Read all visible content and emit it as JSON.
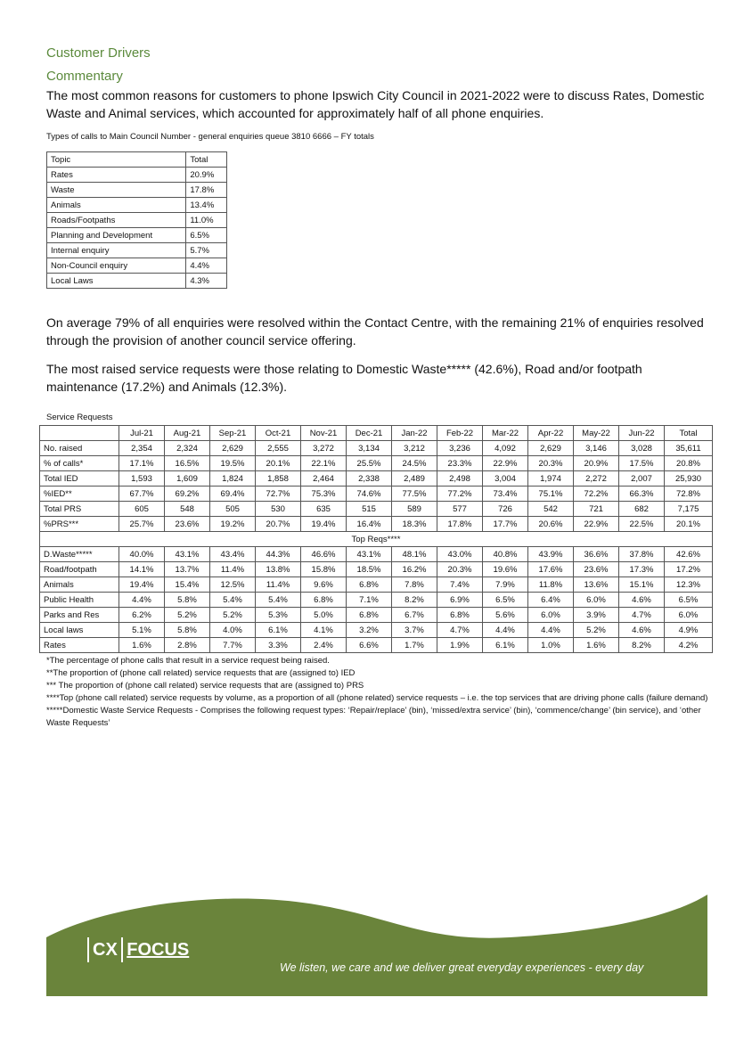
{
  "heading1": "Customer Drivers",
  "heading2": "Commentary",
  "intro": "The most common reasons for customers to phone Ipswich City Council in 2021-2022 were to discuss Rates, Domestic Waste and Animal services, which accounted for approximately half of all phone enquiries.",
  "topics_caption": "Types of calls to Main Council Number - general enquiries queue 3810 6666 – FY totals",
  "topics": {
    "headers": [
      "Topic",
      "Total"
    ],
    "rows": [
      [
        "Rates",
        "20.9%"
      ],
      [
        "Waste",
        "17.8%"
      ],
      [
        "Animals",
        "13.4%"
      ],
      [
        "Roads/Footpaths",
        "11.0%"
      ],
      [
        "Planning and Development",
        "6.5%"
      ],
      [
        "Internal enquiry",
        "5.7%"
      ],
      [
        "Non-Council enquiry",
        "4.4%"
      ],
      [
        "Local Laws",
        "4.3%"
      ]
    ]
  },
  "para2": "On average 79% of all enquiries were resolved within the Contact Centre, with the remaining 21% of enquiries resolved through the provision of another council service offering.",
  "para3": "The most raised service requests were those relating to Domestic Waste***** (42.6%), Road and/or footpath maintenance (17.2%) and Animals (12.3%).",
  "sr_caption": "Service Requests",
  "service_requests": {
    "headers": [
      "",
      "Jul-21",
      "Aug-21",
      "Sep-21",
      "Oct-21",
      "Nov-21",
      "Dec-21",
      "Jan-22",
      "Feb-22",
      "Mar-22",
      "Apr-22",
      "May-22",
      "Jun-22",
      "Total"
    ],
    "rows": [
      [
        "No. raised",
        "2,354",
        "2,324",
        "2,629",
        "2,555",
        "3,272",
        "3,134",
        "3,212",
        "3,236",
        "4,092",
        "2,629",
        "3,146",
        "3,028",
        "35,611"
      ],
      [
        "% of calls*",
        "17.1%",
        "16.5%",
        "19.5%",
        "20.1%",
        "22.1%",
        "25.5%",
        "24.5%",
        "23.3%",
        "22.9%",
        "20.3%",
        "20.9%",
        "17.5%",
        "20.8%"
      ],
      [
        "Total IED",
        "1,593",
        "1,609",
        "1,824",
        "1,858",
        "2,464",
        "2,338",
        "2,489",
        "2,498",
        "3,004",
        "1,974",
        "2,272",
        "2,007",
        "25,930"
      ],
      [
        "%IED**",
        "67.7%",
        "69.2%",
        "69.4%",
        "72.7%",
        "75.3%",
        "74.6%",
        "77.5%",
        "77.2%",
        "73.4%",
        "75.1%",
        "72.2%",
        "66.3%",
        "72.8%"
      ],
      [
        "Total PRS",
        "605",
        "548",
        "505",
        "530",
        "635",
        "515",
        "589",
        "577",
        "726",
        "542",
        "721",
        "682",
        "7,175"
      ],
      [
        "%PRS***",
        "25.7%",
        "23.6%",
        "19.2%",
        "20.7%",
        "19.4%",
        "16.4%",
        "18.3%",
        "17.8%",
        "17.7%",
        "20.6%",
        "22.9%",
        "22.5%",
        "20.1%"
      ]
    ],
    "section_label": "Top Reqs****",
    "top_rows": [
      [
        "D.Waste*****",
        "40.0%",
        "43.1%",
        "43.4%",
        "44.3%",
        "46.6%",
        "43.1%",
        "48.1%",
        "43.0%",
        "40.8%",
        "43.9%",
        "36.6%",
        "37.8%",
        "42.6%"
      ],
      [
        "Road/footpath",
        "14.1%",
        "13.7%",
        "11.4%",
        "13.8%",
        "15.8%",
        "18.5%",
        "16.2%",
        "20.3%",
        "19.6%",
        "17.6%",
        "23.6%",
        "17.3%",
        "17.2%"
      ],
      [
        "Animals",
        "19.4%",
        "15.4%",
        "12.5%",
        "11.4%",
        "9.6%",
        "6.8%",
        "7.8%",
        "7.4%",
        "7.9%",
        "11.8%",
        "13.6%",
        "15.1%",
        "12.3%"
      ],
      [
        "Public Health",
        "4.4%",
        "5.8%",
        "5.4%",
        "5.4%",
        "6.8%",
        "7.1%",
        "8.2%",
        "6.9%",
        "6.5%",
        "6.4%",
        "6.0%",
        "4.6%",
        "6.5%"
      ],
      [
        "Parks and Res",
        "6.2%",
        "5.2%",
        "5.2%",
        "5.3%",
        "5.0%",
        "6.8%",
        "6.7%",
        "6.8%",
        "5.6%",
        "6.0%",
        "3.9%",
        "4.7%",
        "6.0%"
      ],
      [
        "Local laws",
        "5.1%",
        "5.8%",
        "4.0%",
        "6.1%",
        "4.1%",
        "3.2%",
        "3.7%",
        "4.7%",
        "4.4%",
        "4.4%",
        "5.2%",
        "4.6%",
        "4.9%"
      ],
      [
        "Rates",
        "1.6%",
        "2.8%",
        "7.7%",
        "3.3%",
        "2.4%",
        "6.6%",
        "1.7%",
        "1.9%",
        "6.1%",
        "1.0%",
        "1.6%",
        "8.2%",
        "4.2%"
      ]
    ]
  },
  "notes": [
    "*The percentage of phone calls that result in a service request being raised.",
    "**The proportion of (phone call related) service requests that are (assigned to) IED",
    "*** The proportion of (phone call related) service requests that are (assigned to) PRS",
    "****Top (phone call related) service requests by volume, as a proportion of all (phone related) service requests – i.e. the top services that are driving phone calls (failure demand)",
    "*****Domestic Waste Service Requests - Comprises the following request types: ‘Repair/replace’ (bin), ‘missed/extra service’ (bin), ‘commence/change’ (bin service), and ‘other Waste Requests’"
  ],
  "footer": {
    "logo_text": "CX FOCUS",
    "logo_cx": "CX",
    "logo_focus": "FOCUS",
    "tagline": "We listen, we care and we deliver great everyday experiences - every day",
    "color": "#6a843b"
  }
}
